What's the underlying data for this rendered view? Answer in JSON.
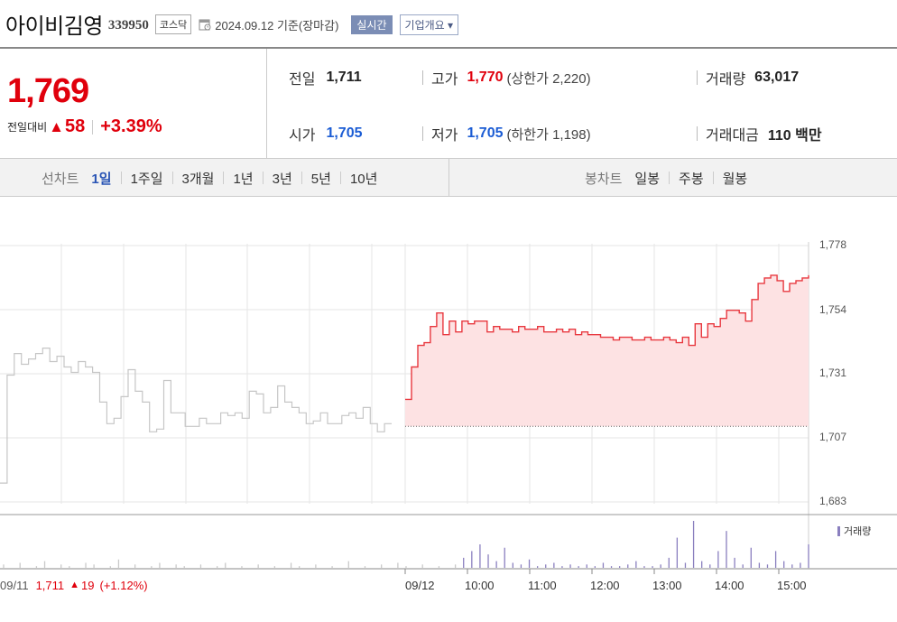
{
  "header": {
    "name": "아이비김영",
    "code": "339950",
    "market": "코스닥",
    "date_basis": "2024.09.12 기준(장마감)",
    "realtime_label": "실시간",
    "company_info_label": "기업개요 ▾"
  },
  "quote": {
    "price": "1,769",
    "change_label": "전일대비",
    "change_arrow": "▲",
    "change": "58",
    "change_pct": "+3.39%",
    "prev_close_label": "전일",
    "prev_close": "1,711",
    "open_label": "시가",
    "open": "1,705",
    "high_label": "고가",
    "high": "1,770",
    "upper_limit": "(상한가 2,220)",
    "low_label": "저가",
    "low": "1,705",
    "lower_limit": "(하한가 1,198)",
    "volume_label": "거래량",
    "volume": "63,017",
    "trade_value_label": "거래대금",
    "trade_value": "110 백만"
  },
  "tabs": {
    "line_title": "선차트",
    "line_ranges": [
      "1일",
      "1주일",
      "3개월",
      "1년",
      "3년",
      "5년",
      "10년"
    ],
    "active_range": "1일",
    "candle_title": "봉차트",
    "candle_ranges": [
      "일봉",
      "주봉",
      "월봉"
    ]
  },
  "chart_data": {
    "type": "line",
    "y_ticks": [
      "1,778",
      "1,754",
      "1,731",
      "1,707",
      "1,683"
    ],
    "ylim": [
      1683,
      1778
    ],
    "x_ticks": [
      "09/12",
      "10:00",
      "11:00",
      "12:00",
      "13:00",
      "14:00",
      "15:00"
    ],
    "prev_day": {
      "date": "09/11",
      "close": "1,711",
      "arrow": "▲",
      "change": "19",
      "change_pct": "(+1.12%)"
    },
    "prev_close": 1711,
    "prev_day_series": [
      1690,
      1730,
      1738,
      1734,
      1736,
      1738,
      1740,
      1735,
      1737,
      1733,
      1731,
      1735,
      1733,
      1731,
      1720,
      1712,
      1714,
      1722,
      1732,
      1724,
      1720,
      1709,
      1710,
      1728,
      1716,
      1716,
      1711,
      1711,
      1714,
      1712,
      1712,
      1716,
      1715,
      1716,
      1714,
      1724,
      1723,
      1716,
      1718,
      1726,
      1720,
      1718,
      1716,
      1712,
      1713,
      1716,
      1712,
      1712,
      1715,
      1716,
      1714,
      1718,
      1712,
      1709,
      1712,
      1712
    ],
    "today_series": [
      1721,
      1733,
      1741,
      1742,
      1748,
      1753,
      1745,
      1750,
      1746,
      1750,
      1749,
      1750,
      1750,
      1746,
      1748,
      1747,
      1747,
      1746,
      1748,
      1747,
      1747,
      1748,
      1746,
      1746,
      1747,
      1746,
      1747,
      1745,
      1746,
      1745,
      1745,
      1744,
      1744,
      1743,
      1744,
      1744,
      1743,
      1743,
      1744,
      1743,
      1743,
      1744,
      1743,
      1742,
      1744,
      1741,
      1749,
      1744,
      1749,
      1748,
      1751,
      1754,
      1754,
      1753,
      1750,
      1758,
      1764,
      1766,
      1767,
      1765,
      1761,
      1764,
      1765,
      1766,
      1767
    ],
    "volume_series": [
      2,
      0,
      3,
      0,
      1,
      4,
      0,
      2,
      1,
      0,
      3,
      2,
      0,
      1,
      5,
      0,
      2,
      0,
      1,
      3,
      0,
      2,
      1,
      0,
      2,
      0,
      1,
      3,
      0,
      1,
      0,
      2,
      0,
      1,
      0,
      3,
      1,
      0,
      2,
      0,
      1,
      0,
      4,
      0,
      1,
      0,
      2,
      0,
      3,
      1,
      0,
      2,
      0,
      1,
      0,
      2,
      6,
      10,
      14,
      8,
      4,
      12,
      3,
      2,
      5,
      1,
      2,
      3,
      1,
      2,
      1,
      2,
      1,
      3,
      1,
      1,
      2,
      4,
      1,
      1,
      2,
      6,
      18,
      3,
      28,
      4,
      2,
      10,
      22,
      6,
      2,
      12,
      3,
      2,
      10,
      4,
      2,
      3,
      14
    ],
    "legend_volume": "거래량",
    "colors": {
      "today_line": "#e8383f",
      "today_fill": "#fde2e3",
      "prev_line": "#c6c6c6",
      "volume": "#8a7fbf",
      "grid": "#e6e6e6"
    }
  }
}
